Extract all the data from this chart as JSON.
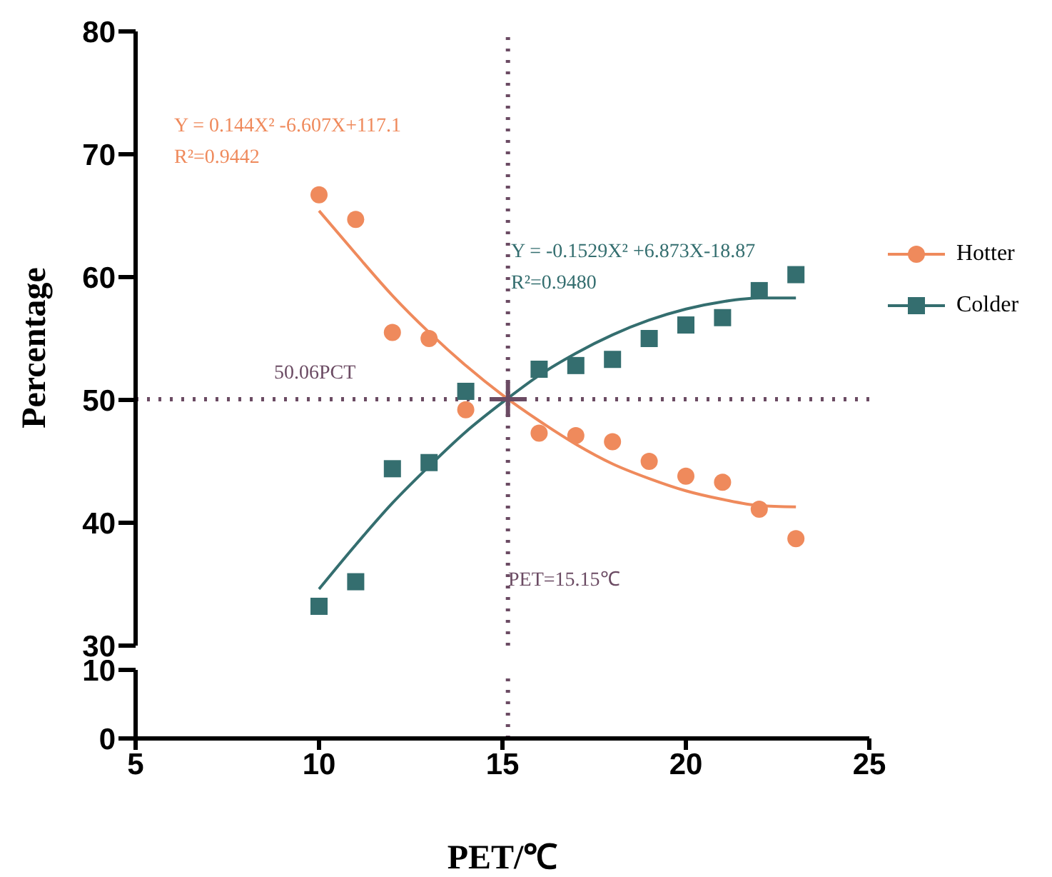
{
  "chart_data": [
    {
      "type": "scatter",
      "ylabel": "Percentage",
      "xlim": [
        5,
        25
      ],
      "ylim": [
        30,
        80
      ],
      "yticks": [
        30,
        40,
        50,
        60,
        70,
        80
      ],
      "tick_labels": "y",
      "grid": false,
      "legend": "right",
      "series": [
        {
          "name": "Hotter",
          "type": "scatter",
          "marker": "circle",
          "color": "#ef8a5c",
          "x": [
            10,
            11,
            12,
            13,
            14,
            16,
            17,
            18,
            19,
            20,
            21,
            22,
            23
          ],
          "values": [
            66.7,
            64.7,
            55.5,
            55.0,
            49.2,
            47.3,
            47.1,
            46.6,
            45.0,
            43.8,
            43.3,
            41.1,
            38.7
          ]
        },
        {
          "name": "Colder",
          "type": "scatter",
          "marker": "square",
          "color": "#346e6f",
          "x": [
            10,
            11,
            12,
            13,
            14,
            16,
            17,
            18,
            19,
            20,
            21,
            22,
            23
          ],
          "values": [
            33.2,
            35.2,
            44.4,
            44.9,
            50.7,
            52.5,
            52.8,
            53.3,
            55.0,
            56.1,
            56.7,
            58.9,
            60.2
          ]
        },
        {
          "type": "line",
          "marker": "none",
          "color": "#ef8a5c",
          "x": [
            10,
            11,
            12,
            13,
            14,
            15,
            16,
            17,
            18,
            19,
            20,
            21,
            22,
            23
          ],
          "values": [
            65.4,
            61.9,
            58.5,
            55.5,
            52.8,
            50.4,
            48.3,
            46.4,
            44.8,
            43.6,
            42.6,
            41.9,
            41.4,
            41.3
          ]
        },
        {
          "type": "line",
          "marker": "none",
          "color": "#346e6f",
          "x": [
            10,
            11,
            12,
            13,
            14,
            15,
            16,
            17,
            18,
            19,
            20,
            21,
            22,
            23
          ],
          "values": [
            34.6,
            38.2,
            41.6,
            44.6,
            47.4,
            49.8,
            52.0,
            53.8,
            55.3,
            56.5,
            57.4,
            58.0,
            58.3,
            58.3
          ]
        }
      ],
      "ref_lines": [
        {
          "axis": "x",
          "value": 15.15,
          "color": "#6b4b63",
          "line_style": "dotted"
        },
        {
          "axis": "y",
          "value": 50.06,
          "color": "#6b4b63",
          "line_style": "dotted"
        }
      ],
      "annotations": [
        "Y = 0.144X² -6.607X+117.1",
        "R²=0.9442",
        "Y = -0.1529X² +6.873X-18.87",
        "R²=0.9480",
        "50.06PCT",
        "PET=15.15℃"
      ]
    },
    {
      "type": "scatter",
      "xlabel": "PET/℃",
      "xlim": [
        5,
        25
      ],
      "ylim": [
        0,
        10
      ],
      "xticks": [
        5,
        10,
        15,
        20,
        25
      ],
      "yticks": [
        0,
        10
      ],
      "grid": false,
      "ref_lines": [
        {
          "axis": "x",
          "value": 15.15,
          "color": "#6b4b63",
          "line_style": "dotted"
        }
      ]
    }
  ]
}
